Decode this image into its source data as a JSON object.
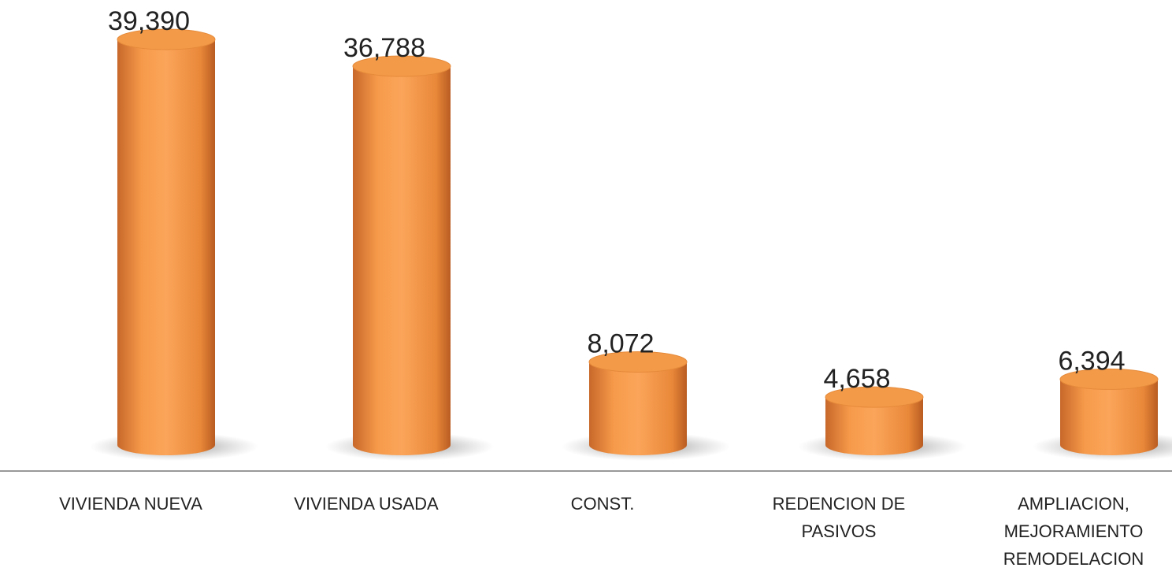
{
  "chart_data": {
    "type": "bar",
    "categories": [
      "VIVIENDA NUEVA",
      "VIVIENDA USADA",
      "CONST.",
      "REDENCION DE PASIVOS",
      "AMPLIACION, MEJORAMIENTO REMODELACION"
    ],
    "values": [
      39390,
      36788,
      8072,
      4658,
      6394
    ],
    "value_labels": [
      "39,390",
      "36,788",
      "8,072",
      "4,658",
      "6,394"
    ],
    "color": "#f39a48"
  }
}
